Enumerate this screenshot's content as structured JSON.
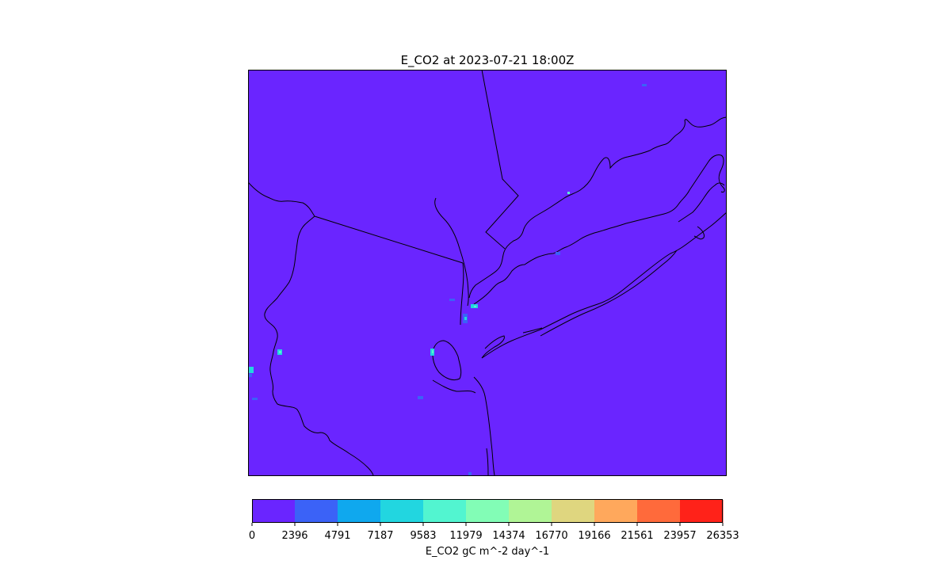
{
  "title": "E_CO2 at 2023-07-21 18:00Z",
  "map": {
    "background_color": "#6a25ff",
    "coastline_color": "#000000",
    "hotspot_colors": [
      "#3b62f7",
      "#22d6e0",
      "#5bf2d2",
      "#0fa8ee"
    ]
  },
  "colorbar": {
    "label": "E_CO2 gC m^-2 day^-1",
    "ticks": [
      "0",
      "2396",
      "4791",
      "7187",
      "9583",
      "11979",
      "14374",
      "16770",
      "19166",
      "21561",
      "23957",
      "26353"
    ],
    "colors": [
      "#6a25ff",
      "#3b62f7",
      "#0fa8ee",
      "#22d6e0",
      "#52f5d0",
      "#82fdb6",
      "#b0f596",
      "#dfd67f",
      "#ffa85c",
      "#ff6a3b",
      "#ff2219"
    ]
  }
}
